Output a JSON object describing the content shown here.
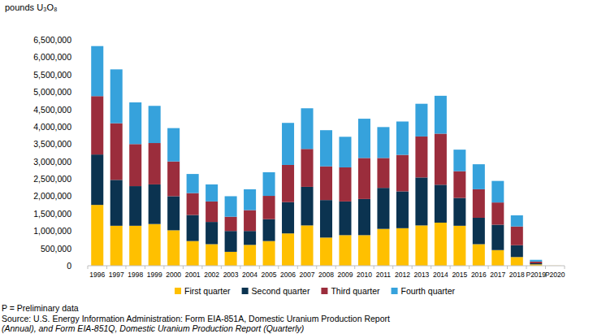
{
  "chart_data": {
    "type": "bar",
    "stacked": true,
    "grid": false,
    "legend": "bottom",
    "y_label": "pounds U₃O₈",
    "note": "P = Preliminary data",
    "source": [
      "Source: U.S. Energy Information Administration: Form EIA-851A, Domestic Uranium Production Report",
      "(Annual), and Form EIA-851Q, Domestic Uranium Production Report (Quarterly)"
    ],
    "categories": [
      "1996",
      "1997",
      "1998",
      "1999",
      "2000",
      "2001",
      "2002",
      "2003",
      "2004",
      "2005",
      "2006",
      "2007",
      "2008",
      "2009",
      "2010",
      "2011",
      "2012",
      "2013",
      "2014",
      "2015",
      "2016",
      "2017",
      "2018",
      "P2019",
      "P2020"
    ],
    "ylim": [
      0,
      6500000
    ],
    "yticks": [
      0,
      {
        "value": 500000,
        "label": "500,000"
      },
      {
        "value": 1000000,
        "label": "1,000,000"
      },
      {
        "value": 1500000,
        "label": "1,500,000"
      },
      {
        "value": 2000000,
        "label": "2,000,000"
      },
      {
        "value": 2500000,
        "label": "2,500,000"
      },
      {
        "value": 3000000,
        "label": "3,000,000"
      },
      {
        "value": 3500000,
        "label": "3,500,000"
      },
      {
        "value": 4000000,
        "label": "4,000,000"
      },
      {
        "value": 4500000,
        "label": "4,500,000"
      },
      {
        "value": 5000000,
        "label": "5,000,000"
      },
      {
        "value": 5500000,
        "label": "5,500,000"
      },
      {
        "value": 6000000,
        "label": "6,000,000"
      },
      {
        "value": 6500000,
        "label": "6,500,000"
      }
    ],
    "series": [
      {
        "name": "First quarter",
        "color": "#ffc000",
        "values": [
          1750000,
          1150000,
          1150000,
          1200000,
          1020000,
          710000,
          620000,
          400000,
          600000,
          710000,
          930000,
          1160000,
          810000,
          880000,
          880000,
          1060000,
          1080000,
          1160000,
          1240000,
          1150000,
          620000,
          450000,
          250000,
          40000,
          3000
        ]
      },
      {
        "name": "Second quarter",
        "color": "#0b3350",
        "values": [
          1450000,
          1320000,
          1140000,
          1140000,
          980000,
          750000,
          640000,
          600000,
          400000,
          630000,
          900000,
          1110000,
          1080000,
          970000,
          1040000,
          1180000,
          1060000,
          1380000,
          1090000,
          800000,
          760000,
          730000,
          340000,
          30000,
          0
        ]
      },
      {
        "name": "Third quarter",
        "color": "#9b2d3c",
        "values": [
          1680000,
          1630000,
          1210000,
          1190000,
          1000000,
          630000,
          590000,
          410000,
          600000,
          670000,
          1070000,
          1090000,
          970000,
          980000,
          1180000,
          860000,
          1050000,
          1180000,
          1470000,
          770000,
          820000,
          640000,
          540000,
          50000,
          0
        ]
      },
      {
        "name": "Fourth quarter",
        "color": "#36a2dc",
        "values": [
          1440000,
          1550000,
          1200000,
          1070000,
          960000,
          550000,
          490000,
          590000,
          600000,
          680000,
          1210000,
          1170000,
          1040000,
          880000,
          1130000,
          890000,
          960000,
          940000,
          1090000,
          620000,
          720000,
          620000,
          320000,
          50000,
          0
        ]
      }
    ]
  }
}
